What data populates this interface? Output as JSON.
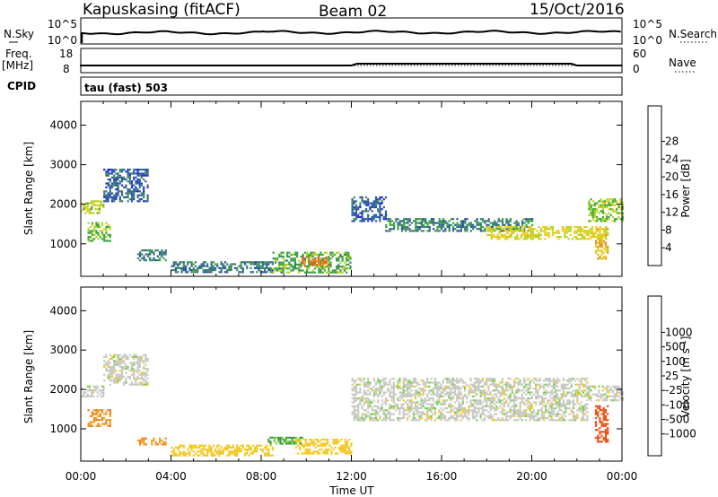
{
  "header": {
    "station": "Kapuskasing (fitACF)",
    "beam": "Beam 02",
    "date": "15/Oct/2016"
  },
  "strips": {
    "nsky_label": "N.Sky",
    "nsearch_label": "N.Search",
    "freq_label_1": "Freq.",
    "freq_label_2": "[MHz]",
    "nave_label": "Nave",
    "cpid_label": "CPID",
    "cpid_value": "tau (fast) 503",
    "noise_ticks_left": [
      "10^5",
      "10^0"
    ],
    "noise_ticks_right": [
      "10^5",
      "10^0"
    ],
    "freq_ticks": [
      "18",
      "8"
    ],
    "nave_ticks": [
      "60",
      "0"
    ]
  },
  "axes": {
    "xlabel": "Time UT",
    "ylabel": "Slant Range [km]",
    "x_tick_labels": [
      "00:00",
      "04:00",
      "08:00",
      "12:00",
      "16:00",
      "20:00",
      "00:00"
    ],
    "x_ticks_hours": [
      0,
      4,
      8,
      12,
      16,
      20,
      24
    ],
    "xlim_hours": [
      0,
      24
    ],
    "ylim_km": [
      180,
      4600
    ],
    "y_ticks": [
      1000,
      2000,
      3000,
      4000
    ],
    "y_tick_labels": [
      "1000",
      "2000",
      "3000",
      "4000"
    ]
  },
  "colorbars": {
    "power": {
      "label": "Power [dB]",
      "tick_labels": [
        "4",
        "8",
        "12",
        "16",
        "20",
        "24",
        "28"
      ],
      "colors": [
        "#1f1fe6",
        "#2653a8",
        "#3b7f6a",
        "#39a63a",
        "#b5d21e",
        "#f2cc20",
        "#f28a17",
        "#e86218",
        "#e81c12"
      ]
    },
    "velocity": {
      "label": "Velocity [m s",
      "label_sup": "-1",
      "label_end": "]",
      "tick_labels": [
        "1000",
        "500",
        "100",
        "25",
        "-25",
        "-100",
        "-500",
        "-1000"
      ],
      "colors": [
        "#1a3fc2",
        "#2d5fb0",
        "#2a7a66",
        "#3d9a3f",
        "#74d23e",
        "#c8c8c3",
        "#f3c81e",
        "#f2a020",
        "#f07d18",
        "#ea4f14",
        "#e5160e"
      ]
    }
  },
  "chart_data": [
    {
      "type": "heatmap",
      "title": "Power",
      "xlabel": "Time UT",
      "ylabel": "Slant Range [km]",
      "xlim": [
        0,
        24
      ],
      "ylim": [
        180,
        4600
      ],
      "scatter_regions": [
        {
          "t0": 0.0,
          "t1": 1.0,
          "r0": 1800,
          "r1": 2100,
          "value_db": 18
        },
        {
          "t0": 0.3,
          "t1": 1.3,
          "r0": 1100,
          "r1": 1550,
          "value_db": 16
        },
        {
          "t0": 1.0,
          "t1": 3.0,
          "r0": 2100,
          "r1": 2900,
          "value_db": 7
        },
        {
          "t0": 2.5,
          "t1": 3.8,
          "r0": 580,
          "r1": 860,
          "value_db": 10
        },
        {
          "t0": 4.0,
          "t1": 8.5,
          "r0": 300,
          "r1": 560,
          "value_db": 9
        },
        {
          "t0": 8.5,
          "t1": 12.0,
          "r0": 300,
          "r1": 800,
          "value_db": 14
        },
        {
          "t0": 9.8,
          "t1": 11.0,
          "r0": 480,
          "r1": 680,
          "value_db": 28
        },
        {
          "t0": 12.0,
          "t1": 13.5,
          "r0": 1600,
          "r1": 2200,
          "value_db": 6
        },
        {
          "t0": 13.5,
          "t1": 20.0,
          "r0": 1350,
          "r1": 1650,
          "value_db": 10
        },
        {
          "t0": 18.0,
          "t1": 23.3,
          "r0": 1150,
          "r1": 1450,
          "value_db": 20
        },
        {
          "t0": 22.5,
          "t1": 24.0,
          "r0": 1600,
          "r1": 2150,
          "value_db": 17
        },
        {
          "t0": 22.8,
          "t1": 23.4,
          "r0": 650,
          "r1": 1400,
          "value_db": 22
        }
      ]
    },
    {
      "type": "heatmap",
      "title": "Velocity",
      "xlabel": "Time UT",
      "ylabel": "Slant Range [km]",
      "xlim": [
        0,
        24
      ],
      "ylim": [
        180,
        4600
      ],
      "scatter_regions": [
        {
          "t0": 0.0,
          "t1": 1.0,
          "r0": 1800,
          "r1": 2100,
          "value_ms": 0
        },
        {
          "t0": 0.3,
          "t1": 1.3,
          "r0": 1050,
          "r1": 1500,
          "value_ms": -300
        },
        {
          "t0": 1.0,
          "t1": 3.0,
          "r0": 2100,
          "r1": 2900,
          "value_ms": 0
        },
        {
          "t0": 2.5,
          "t1": 3.8,
          "r0": 580,
          "r1": 780,
          "value_ms": -300
        },
        {
          "t0": 4.0,
          "t1": 8.5,
          "r0": 300,
          "r1": 600,
          "value_ms": -60
        },
        {
          "t0": 8.2,
          "t1": 9.8,
          "r0": 600,
          "r1": 800,
          "value_ms": 60
        },
        {
          "t0": 9.5,
          "t1": 12.0,
          "r0": 350,
          "r1": 750,
          "value_ms": -60
        },
        {
          "t0": 12.0,
          "t1": 22.5,
          "r0": 1200,
          "r1": 2300,
          "value_ms": 0
        },
        {
          "t0": 22.5,
          "t1": 24.0,
          "r0": 1700,
          "r1": 2100,
          "value_ms": 0
        },
        {
          "t0": 22.8,
          "t1": 23.4,
          "r0": 650,
          "r1": 1600,
          "value_ms": -700
        }
      ]
    }
  ]
}
